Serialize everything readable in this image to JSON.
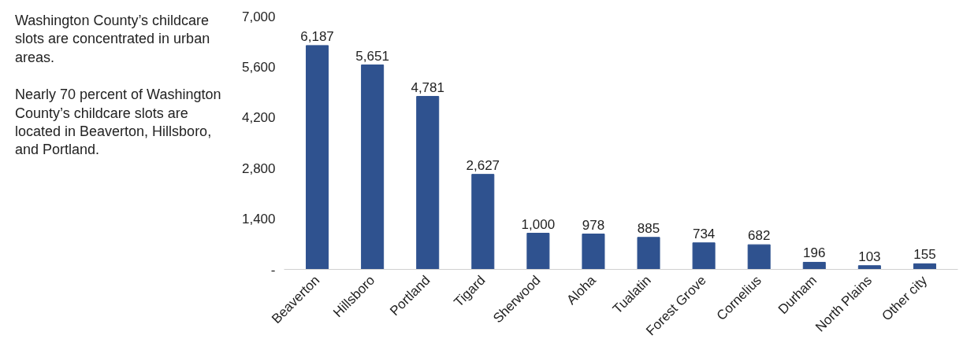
{
  "chart_data": {
    "type": "bar",
    "categories": [
      "Beaverton",
      "Hillsboro",
      "Portland",
      "Tigard",
      "Sherwood",
      "Aloha",
      "Tualatin",
      "Forest Grove",
      "Cornelius",
      "Durham",
      "North Plains",
      "Other city"
    ],
    "values": [
      6187,
      5651,
      4781,
      2627,
      1000,
      978,
      885,
      734,
      682,
      196,
      103,
      155
    ],
    "value_labels": [
      "6,187",
      "5,651",
      "4,781",
      "2,627",
      "1,000",
      "978",
      "885",
      "734",
      "682",
      "196",
      "103",
      "155"
    ],
    "color": "#2f528f",
    "ylim": [
      0,
      7000
    ],
    "yticks": [
      {
        "value": 0,
        "label": "-"
      },
      {
        "value": 1400,
        "label": "1,400"
      },
      {
        "value": 2800,
        "label": "2,800"
      },
      {
        "value": 4200,
        "label": "4,200"
      },
      {
        "value": 5600,
        "label": "5,600"
      },
      {
        "value": 7000,
        "label": "7,000"
      }
    ],
    "grid": false,
    "annotations": [
      "Washington County’s childcare slots are concentrated in urban areas.",
      "Nearly 70 percent of Washington County’s childcare slots are located in Beaverton, Hillsboro, and Portland."
    ]
  }
}
